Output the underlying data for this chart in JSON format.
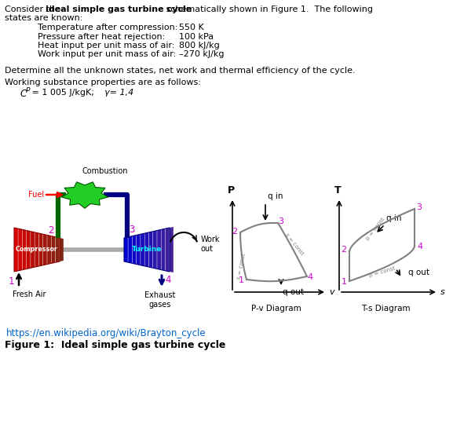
{
  "table_rows": [
    [
      "Temperature after compression:",
      "550 K"
    ],
    [
      "Pressure after heat rejection:",
      "100 kPa"
    ],
    [
      "Heat input per unit mass of air:",
      "800 kJ/kg"
    ],
    [
      "Work input per unit mass of air:",
      "–270 kJ/kg"
    ]
  ],
  "determine_text": "Determine all the unknown states, net work and thermal efficiency of the cycle.",
  "working_text": "Working substance properties are as follows:",
  "gamma_text": "γ= 1,4",
  "url_text": "https://en.wikipedia.org/wiki/Brayton_cycle",
  "bg_color": "#ffffff",
  "text_color": "#000000",
  "magenta_color": "#cc00cc",
  "url_color": "#0066cc",
  "diagram_line_color": "#808080"
}
